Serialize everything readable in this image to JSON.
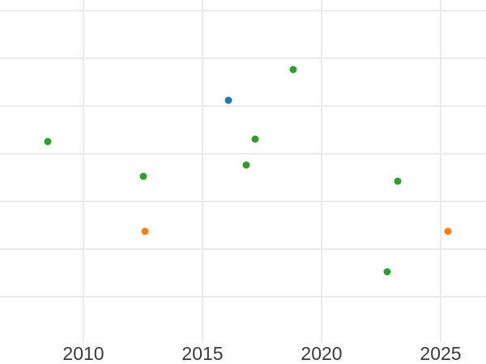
{
  "chart_data": {
    "type": "scatter",
    "title": "",
    "xlabel": "",
    "ylabel": "",
    "legend": "none",
    "grid": true,
    "x_axis": {
      "tick_labels": [
        "2010",
        "2015",
        "2020",
        "2025"
      ],
      "tick_years": [
        2010,
        2015,
        2020,
        2025
      ],
      "range_visible_approx": [
        2006.5,
        2026.9
      ]
    },
    "y_axis": {
      "tick_labels_visible": false,
      "note": "no y tick labels visible; values given in gridline units counted up from the lowest visible horizontal gridline",
      "visible_gridline_count": 7
    },
    "series": [
      {
        "name": "green-series",
        "color": "#2ca02c",
        "points": [
          {
            "x": 2008.5,
            "y_grid_units": 3.25
          },
          {
            "x": 2012.5,
            "y_grid_units": 2.53
          },
          {
            "x": 2016.85,
            "y_grid_units": 2.76
          },
          {
            "x": 2017.2,
            "y_grid_units": 3.31
          },
          {
            "x": 2018.8,
            "y_grid_units": 4.76
          },
          {
            "x": 2022.75,
            "y_grid_units": 0.53
          },
          {
            "x": 2023.2,
            "y_grid_units": 2.42
          }
        ]
      },
      {
        "name": "orange-series",
        "color": "#ff7f0e",
        "points": [
          {
            "x": 2012.6,
            "y_grid_units": 1.37
          },
          {
            "x": 2025.3,
            "y_grid_units": 1.37
          }
        ]
      },
      {
        "name": "blue-series",
        "color": "#1f77b4",
        "points": [
          {
            "x": 2016.1,
            "y_grid_units": 4.12
          }
        ]
      }
    ],
    "style": {
      "background_color": "#ffffff",
      "gridline_color": "#ebebeb",
      "tick_label_color": "#3b3b3b"
    }
  }
}
